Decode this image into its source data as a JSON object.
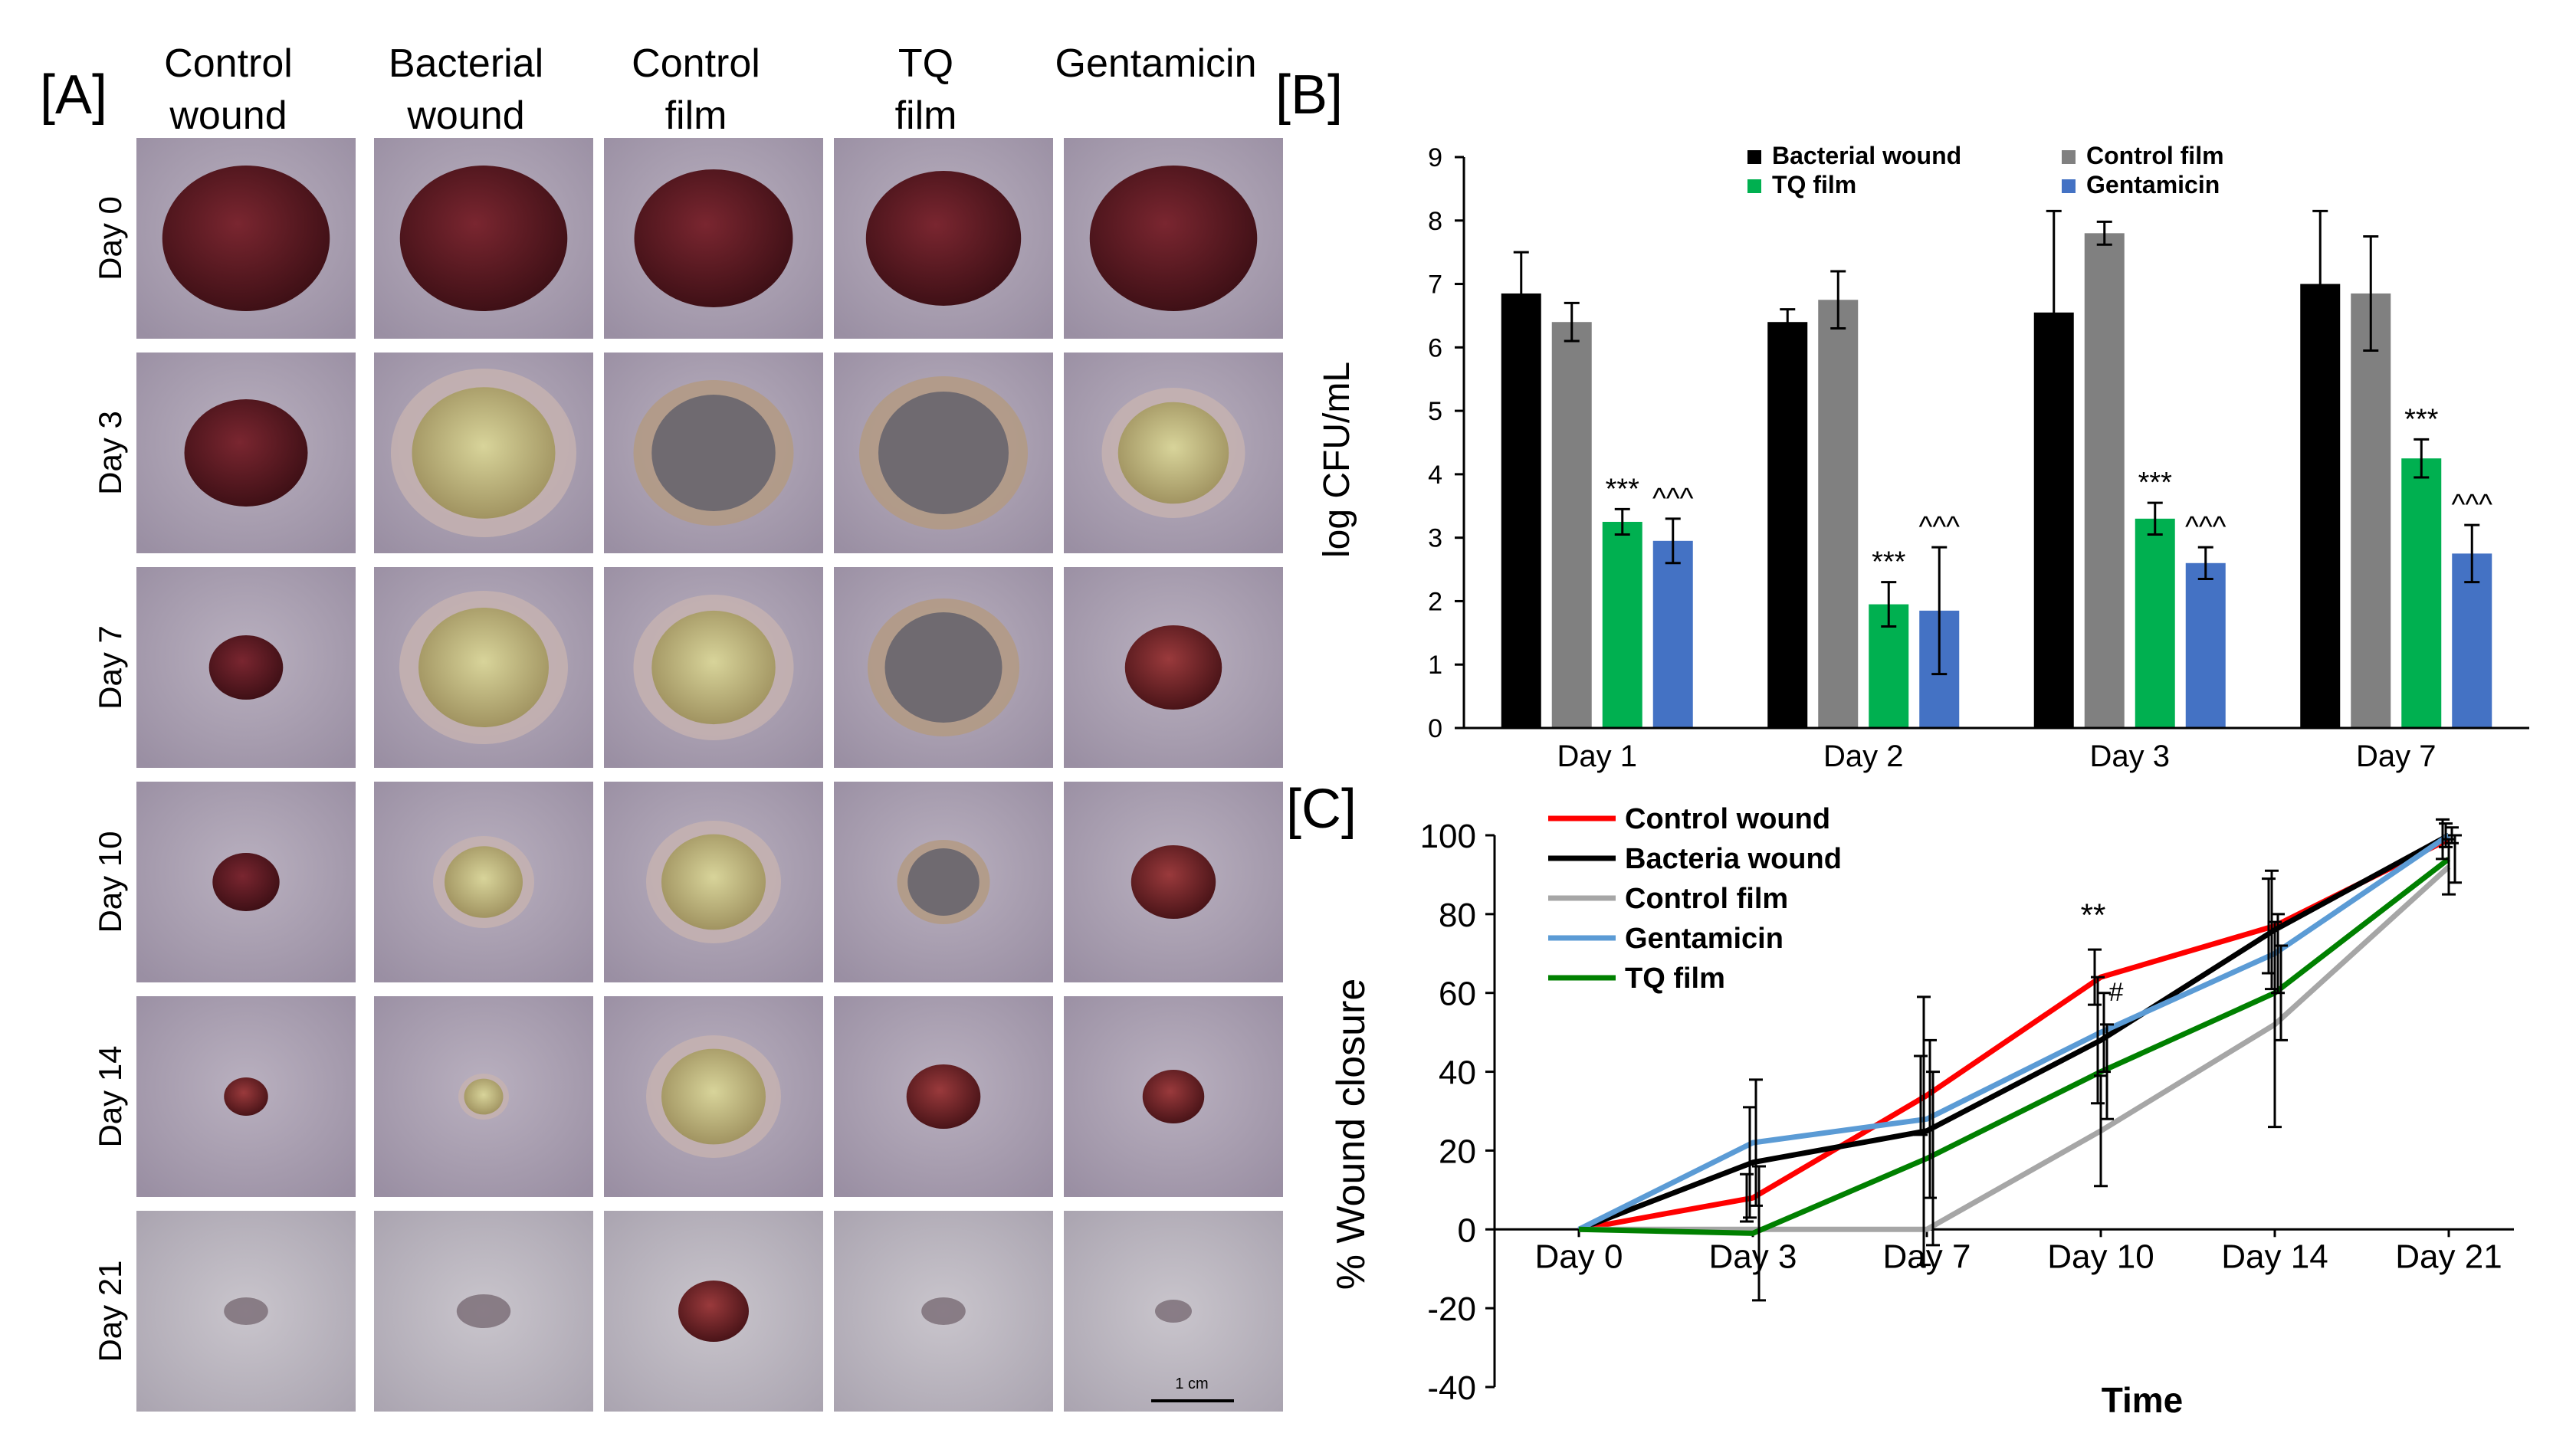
{
  "panelA": {
    "label": "[A]",
    "columns": [
      {
        "line1": "Control",
        "line2": "wound"
      },
      {
        "line1": "Bacterial",
        "line2": "wound"
      },
      {
        "line1": "Control",
        "line2": "film"
      },
      {
        "line1": "TQ",
        "line2": "film"
      },
      {
        "line1": "Gentamicin",
        "line2": ""
      }
    ],
    "rows": [
      "Day 0",
      "Day 3",
      "Day 7",
      "Day 10",
      "Day 14",
      "Day 21"
    ],
    "scale_bar_label": "1 cm",
    "colors": {
      "skin": "#a8a0b2",
      "wound_dark": "#5a1a22",
      "slough": "#c9c48a",
      "scab": "#7a2a2e"
    }
  },
  "chart_data": [
    {
      "panel_label": "[B]",
      "type": "bar",
      "title": "",
      "xlabel": "",
      "ylabel": "log CFU/mL",
      "ylim": [
        0,
        9
      ],
      "yticks": [
        0,
        1,
        2,
        3,
        4,
        5,
        6,
        7,
        8,
        9
      ],
      "categories": [
        "Day 1",
        "Day 2",
        "Day 3",
        "Day 7"
      ],
      "legend_position": "top",
      "series": [
        {
          "name": "Bacterial wound",
          "color": "#000000",
          "values": [
            6.85,
            6.4,
            6.55,
            7.0
          ],
          "errors": [
            0.65,
            0.2,
            1.6,
            1.15
          ]
        },
        {
          "name": "Control film",
          "color": "#808080",
          "values": [
            6.4,
            6.75,
            7.8,
            6.85
          ],
          "errors": [
            0.3,
            0.45,
            0.18,
            0.9
          ]
        },
        {
          "name": "TQ film",
          "color": "#00b050",
          "values": [
            3.25,
            1.95,
            3.3,
            4.25
          ],
          "errors": [
            0.2,
            0.35,
            0.25,
            0.3
          ]
        },
        {
          "name": "Gentamicin",
          "color": "#4472c4",
          "values": [
            2.95,
            1.85,
            2.6,
            2.75
          ],
          "errors": [
            0.35,
            1.0,
            0.25,
            0.45
          ]
        }
      ],
      "annotations": [
        {
          "series": "TQ film",
          "category": "Day 1",
          "text": "***"
        },
        {
          "series": "Gentamicin",
          "category": "Day 1",
          "text": "^^^"
        },
        {
          "series": "TQ film",
          "category": "Day 2",
          "text": "***"
        },
        {
          "series": "Gentamicin",
          "category": "Day 2",
          "text": "^^^"
        },
        {
          "series": "TQ film",
          "category": "Day 3",
          "text": "***"
        },
        {
          "series": "Gentamicin",
          "category": "Day 3",
          "text": "^^^"
        },
        {
          "series": "TQ film",
          "category": "Day 7",
          "text": "***"
        },
        {
          "series": "Gentamicin",
          "category": "Day 7",
          "text": "^^^"
        }
      ]
    },
    {
      "panel_label": "[C]",
      "type": "line",
      "title": "",
      "xlabel": "Time",
      "ylabel": "% Wound closure",
      "ylim": [
        -40,
        100
      ],
      "yticks": [
        -40,
        -20,
        0,
        20,
        40,
        60,
        80,
        100
      ],
      "categories": [
        "Day 0",
        "Day 3",
        "Day 7",
        "Day 10",
        "Day 14",
        "Day 21"
      ],
      "legend_position": "top-left",
      "series": [
        {
          "name": "Control wound",
          "color": "#ff0000",
          "values": [
            0,
            8,
            34,
            64,
            77,
            99
          ],
          "errors": [
            0,
            6,
            10,
            7,
            12,
            5
          ]
        },
        {
          "name": "Bacteria wound",
          "color": "#000000",
          "values": [
            0,
            17,
            25,
            48,
            76,
            100
          ],
          "errors": [
            0,
            14,
            34,
            16,
            15,
            3
          ]
        },
        {
          "name": "Control film",
          "color": "#a6a6a6",
          "values": [
            0,
            0,
            0,
            25,
            52,
            92
          ],
          "errors": [
            0,
            0,
            0,
            14,
            26,
            7
          ]
        },
        {
          "name": "Gentamicin",
          "color": "#5b9bd5",
          "values": [
            0,
            22,
            28,
            50,
            70,
            100
          ],
          "errors": [
            0,
            16,
            20,
            10,
            10,
            2
          ]
        },
        {
          "name": "TQ film",
          "color": "#008000",
          "values": [
            0,
            -1,
            18,
            40,
            60,
            94
          ],
          "errors": [
            0,
            17,
            22,
            12,
            12,
            6
          ]
        }
      ],
      "annotations": [
        {
          "category": "Day 10",
          "value": 77,
          "text": "**"
        },
        {
          "category": "Day 10",
          "value": 58,
          "text": "#"
        }
      ]
    }
  ]
}
